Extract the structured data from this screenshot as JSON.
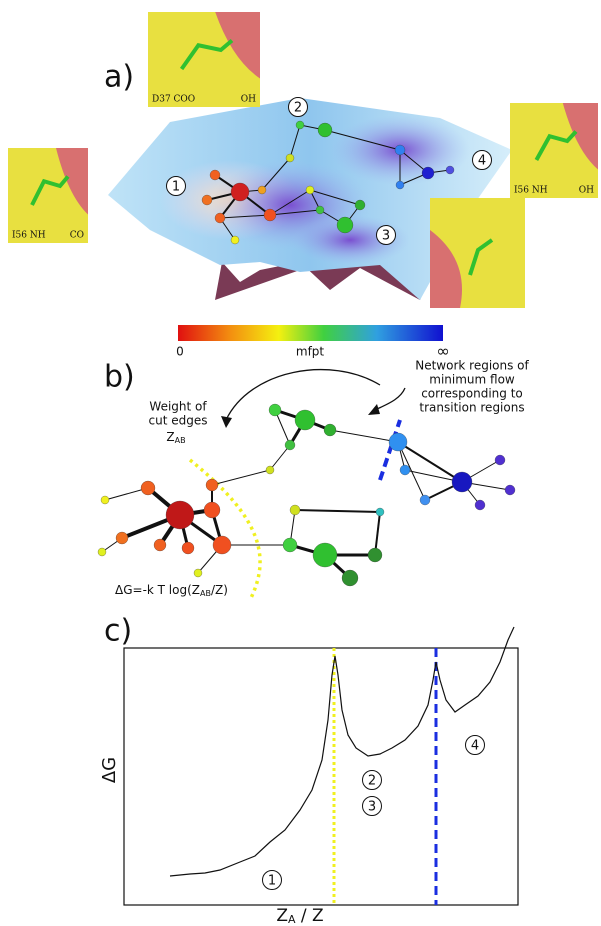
{
  "panels": {
    "a": {
      "label": "a)",
      "insets": [
        {
          "residue": "D37 COO",
          "group": "OH"
        },
        {
          "residue": "I56 NH",
          "group": "CO"
        },
        {
          "residue": "I56 NH",
          "group": "OH"
        }
      ],
      "states": [
        "1",
        "2",
        "3",
        "4"
      ],
      "colorbar": {
        "min": "0",
        "title": "mfpt",
        "max": "∞"
      }
    },
    "b": {
      "label": "b)",
      "cut_label": "Weight of",
      "cut_label_2": "cut edges",
      "cut_symbol": {
        "main": "Z",
        "sub": "AB"
      },
      "network_note": [
        "Network regions of",
        "minimum flow",
        "corresponding to",
        "transition regions"
      ],
      "formula": {
        "pre": "ΔG=-k T log(Z",
        "sub": "AB",
        "post": "/Z)"
      }
    },
    "c": {
      "label": "c)",
      "y_label": "ΔG",
      "x_label": {
        "main": "Z",
        "sub": "A",
        "post": " / Z"
      },
      "states": [
        "1",
        "2",
        "3",
        "4"
      ]
    }
  }
}
